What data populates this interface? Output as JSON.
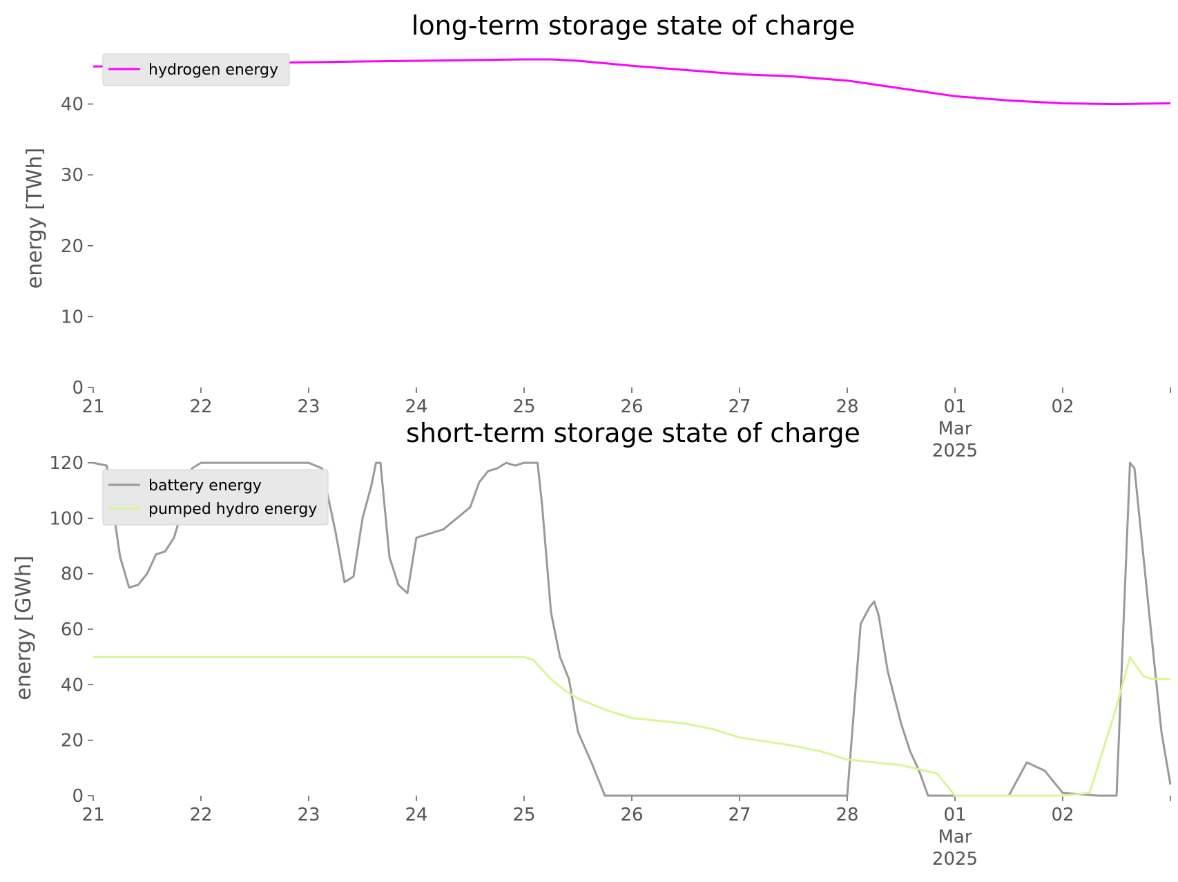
{
  "chart_data": [
    {
      "type": "line",
      "title": "long-term storage state of charge",
      "xlabel": "",
      "ylabel": "energy [TWh]",
      "ylim": [
        0,
        50
      ],
      "yticks": [
        0,
        10,
        20,
        30,
        40
      ],
      "xlim": [
        "2025-02-21",
        "2025-03-03"
      ],
      "xticks": [
        {
          "x": "2025-02-21",
          "label": "21"
        },
        {
          "x": "2025-02-22",
          "label": "22"
        },
        {
          "x": "2025-02-23",
          "label": "23"
        },
        {
          "x": "2025-02-24",
          "label": "24"
        },
        {
          "x": "2025-02-25",
          "label": "25"
        },
        {
          "x": "2025-02-26",
          "label": "26"
        },
        {
          "x": "2025-02-27",
          "label": "27"
        },
        {
          "x": "2025-02-28",
          "label": "28"
        },
        {
          "x": "2025-03-01",
          "label": "01",
          "sublabels": [
            "Mar",
            "2025"
          ]
        },
        {
          "x": "2025-03-02",
          "label": "02"
        },
        {
          "x": "2025-03-03",
          "label": ""
        }
      ],
      "grid": false,
      "legend": "top-left",
      "series": [
        {
          "name": "hydrogen energy",
          "color": "#ff00ff",
          "x": [
            "2025-02-21 00:00",
            "2025-02-21 12:00",
            "2025-02-22 00:00",
            "2025-02-22 12:00",
            "2025-02-23 00:00",
            "2025-02-23 12:00",
            "2025-02-24 00:00",
            "2025-02-24 12:00",
            "2025-02-25 00:00",
            "2025-02-25 06:00",
            "2025-02-25 12:00",
            "2025-02-26 00:00",
            "2025-02-26 12:00",
            "2025-02-27 00:00",
            "2025-02-27 12:00",
            "2025-02-28 00:00",
            "2025-02-28 12:00",
            "2025-03-01 00:00",
            "2025-03-01 12:00",
            "2025-03-02 00:00",
            "2025-03-02 12:00",
            "2025-03-03 00:00"
          ],
          "values": [
            45.3,
            45.4,
            45.6,
            45.8,
            45.9,
            46.0,
            46.1,
            46.2,
            46.3,
            46.3,
            46.1,
            45.4,
            44.8,
            44.2,
            43.9,
            43.3,
            42.2,
            41.1,
            40.5,
            40.1,
            40.0,
            40.1
          ]
        }
      ]
    },
    {
      "type": "line",
      "title": "short-term storage state of charge",
      "xlabel": "",
      "ylabel": "energy [GWh]",
      "ylim": [
        0,
        125
      ],
      "yticks": [
        0,
        20,
        40,
        60,
        80,
        100,
        120
      ],
      "xlim": [
        "2025-02-21",
        "2025-03-03"
      ],
      "xticks": [
        {
          "x": "2025-02-21",
          "label": "21"
        },
        {
          "x": "2025-02-22",
          "label": "22"
        },
        {
          "x": "2025-02-23",
          "label": "23"
        },
        {
          "x": "2025-02-24",
          "label": "24"
        },
        {
          "x": "2025-02-25",
          "label": "25"
        },
        {
          "x": "2025-02-26",
          "label": "26"
        },
        {
          "x": "2025-02-27",
          "label": "27"
        },
        {
          "x": "2025-02-28",
          "label": "28"
        },
        {
          "x": "2025-03-01",
          "label": "01",
          "sublabels": [
            "Mar",
            "2025"
          ]
        },
        {
          "x": "2025-03-02",
          "label": "02"
        },
        {
          "x": "2025-03-03",
          "label": ""
        }
      ],
      "grid": false,
      "legend": "top-left",
      "series": [
        {
          "name": "battery energy",
          "color": "#999999",
          "x": [
            "2025-02-21 00:00",
            "2025-02-21 03:00",
            "2025-02-21 06:00",
            "2025-02-21 08:00",
            "2025-02-21 10:00",
            "2025-02-21 12:00",
            "2025-02-21 14:00",
            "2025-02-21 16:00",
            "2025-02-21 18:00",
            "2025-02-21 20:00",
            "2025-02-21 22:00",
            "2025-02-22 00:00",
            "2025-02-23 00:00",
            "2025-02-23 03:00",
            "2025-02-23 06:00",
            "2025-02-23 08:00",
            "2025-02-23 10:00",
            "2025-02-23 12:00",
            "2025-02-23 14:00",
            "2025-02-23 15:00",
            "2025-02-23 16:00",
            "2025-02-23 18:00",
            "2025-02-23 20:00",
            "2025-02-23 22:00",
            "2025-02-24 00:00",
            "2025-02-24 06:00",
            "2025-02-24 12:00",
            "2025-02-24 14:00",
            "2025-02-24 16:00",
            "2025-02-24 18:00",
            "2025-02-24 20:00",
            "2025-02-24 22:00",
            "2025-02-25 00:00",
            "2025-02-25 03:00",
            "2025-02-25 04:00",
            "2025-02-25 06:00",
            "2025-02-25 08:00",
            "2025-02-25 10:00",
            "2025-02-25 12:00",
            "2025-02-25 15:00",
            "2025-02-25 18:00",
            "2025-02-25 20:00",
            "2025-02-25 22:00",
            "2025-02-26 00:00",
            "2025-02-27 00:00",
            "2025-02-27 12:00",
            "2025-02-28 00:00",
            "2025-02-28 03:00",
            "2025-02-28 05:00",
            "2025-02-28 06:00",
            "2025-02-28 07:00",
            "2025-02-28 09:00",
            "2025-02-28 12:00",
            "2025-02-28 14:00",
            "2025-02-28 16:00",
            "2025-02-28 18:00",
            "2025-02-28 20:00",
            "2025-03-01 00:00",
            "2025-03-01 12:00",
            "2025-03-01 14:00",
            "2025-03-01 16:00",
            "2025-03-01 20:00",
            "2025-03-02 00:00",
            "2025-03-02 08:00",
            "2025-03-02 12:00",
            "2025-03-02 15:00",
            "2025-03-02 16:00",
            "2025-03-02 19:00",
            "2025-03-02 22:00",
            "2025-03-03 00:00"
          ],
          "values": [
            120,
            119,
            86,
            75,
            76,
            80,
            87,
            88,
            93,
            104,
            118,
            120,
            120,
            118,
            95,
            77,
            79,
            100,
            112,
            120,
            120,
            86,
            76,
            73,
            93,
            96,
            104,
            113,
            117,
            118,
            120,
            119,
            120,
            120,
            105,
            66,
            50,
            42,
            23,
            12,
            0,
            0,
            0,
            0,
            0,
            0,
            0,
            62,
            68,
            70,
            65,
            45,
            26,
            16,
            9,
            0,
            0,
            0,
            0,
            6,
            12,
            9,
            1,
            0,
            0,
            120,
            118,
            70,
            23,
            4
          ],
          "notes": "flat at zero segments between labeled points"
        },
        {
          "name": "pumped hydro energy",
          "color": "#d9f595",
          "x": [
            "2025-02-21 00:00",
            "2025-02-25 00:00",
            "2025-02-25 02:00",
            "2025-02-25 06:00",
            "2025-02-25 09:00",
            "2025-02-25 12:00",
            "2025-02-25 18:00",
            "2025-02-26 00:00",
            "2025-02-26 12:00",
            "2025-02-26 18:00",
            "2025-02-27 00:00",
            "2025-02-27 12:00",
            "2025-02-27 18:00",
            "2025-02-28 00:00",
            "2025-02-28 06:00",
            "2025-02-28 12:00",
            "2025-02-28 20:00",
            "2025-03-01 00:00",
            "2025-03-02 00:00",
            "2025-03-02 06:00",
            "2025-03-02 12:00",
            "2025-03-02 15:00",
            "2025-03-02 18:00",
            "2025-03-02 20:00",
            "2025-03-03 00:00"
          ],
          "values": [
            50,
            50,
            49,
            42,
            38,
            35,
            31,
            28,
            26,
            24,
            21,
            18,
            16,
            13,
            12,
            11,
            8,
            0,
            0,
            1,
            32,
            50,
            43,
            42,
            42
          ]
        }
      ]
    }
  ]
}
